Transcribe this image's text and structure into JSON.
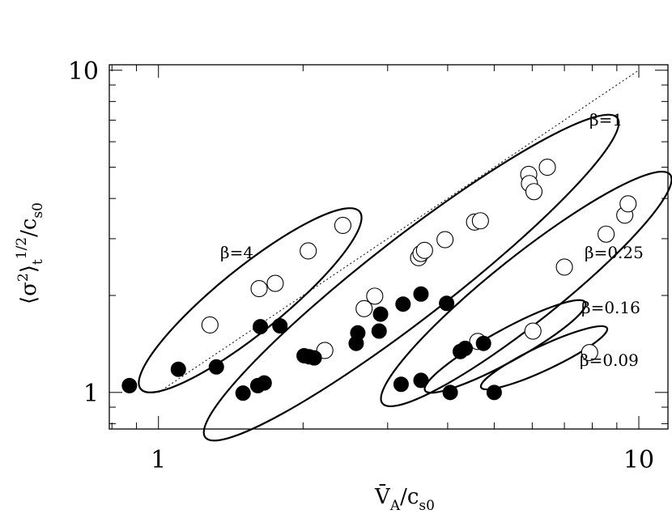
{
  "chart_data": {
    "type": "scatter",
    "title": "",
    "xlabel": "V̄A/cs0",
    "ylabel": "⟨σ²⟩t^1/2/cs0",
    "x_scale": "log",
    "y_scale": "log",
    "xlim": [
      0.79,
      11.5
    ],
    "ylim": [
      0.77,
      10.4
    ],
    "x_ticks": [
      {
        "value": 1,
        "label": "1"
      },
      {
        "value": 10,
        "label": "10"
      }
    ],
    "y_ticks": [
      {
        "value": 1,
        "label": "1"
      },
      {
        "value": 10,
        "label": "10"
      }
    ],
    "grid": false,
    "reference_line": {
      "style": "dotted",
      "slope": 1,
      "from": [
        1,
        1
      ],
      "to": [
        10,
        10
      ]
    },
    "series": [
      {
        "marker": "open-circle",
        "points": [
          [
            1.28,
            1.62
          ],
          [
            1.62,
            2.1
          ],
          [
            1.75,
            2.18
          ],
          [
            2.05,
            2.75
          ],
          [
            2.22,
            1.35
          ],
          [
            2.42,
            3.3
          ],
          [
            2.68,
            1.82
          ],
          [
            2.82,
            1.99
          ],
          [
            3.48,
            2.62
          ],
          [
            3.52,
            2.7
          ],
          [
            3.58,
            2.76
          ],
          [
            3.95,
            2.98
          ],
          [
            4.55,
            3.38
          ],
          [
            4.68,
            3.41
          ],
          [
            4.62,
            1.44
          ],
          [
            5.9,
            4.75
          ],
          [
            5.92,
            4.45
          ],
          [
            6.05,
            4.2
          ],
          [
            6.45,
            5.0
          ],
          [
            6.02,
            1.55
          ],
          [
            7.0,
            2.45
          ],
          [
            8.55,
            3.1
          ],
          [
            9.35,
            3.55
          ],
          [
            9.5,
            3.85
          ],
          [
            7.9,
            1.33
          ]
        ]
      },
      {
        "marker": "filled-circle",
        "points": [
          [
            0.87,
            1.05
          ],
          [
            1.1,
            1.18
          ],
          [
            1.32,
            1.2
          ],
          [
            1.5,
            0.995
          ],
          [
            1.61,
            1.05
          ],
          [
            1.63,
            1.6
          ],
          [
            1.66,
            1.07
          ],
          [
            1.79,
            1.61
          ],
          [
            2.01,
            1.3
          ],
          [
            2.06,
            1.29
          ],
          [
            2.11,
            1.28
          ],
          [
            2.58,
            1.42
          ],
          [
            2.6,
            1.53
          ],
          [
            2.88,
            1.55
          ],
          [
            2.9,
            1.75
          ],
          [
            3.2,
            1.06
          ],
          [
            3.23,
            1.88
          ],
          [
            3.52,
            2.02
          ],
          [
            3.52,
            1.09
          ],
          [
            3.98,
            1.89
          ],
          [
            4.05,
            1.0
          ],
          [
            4.25,
            1.34
          ],
          [
            4.35,
            1.37
          ],
          [
            4.75,
            1.42
          ],
          [
            5.0,
            1.0
          ]
        ]
      }
    ],
    "groups": [
      {
        "label": "β=4"
      },
      {
        "label": "β=1"
      },
      {
        "label": "β=0.25"
      },
      {
        "label": "β=0.16"
      },
      {
        "label": "β=0.09"
      }
    ]
  }
}
